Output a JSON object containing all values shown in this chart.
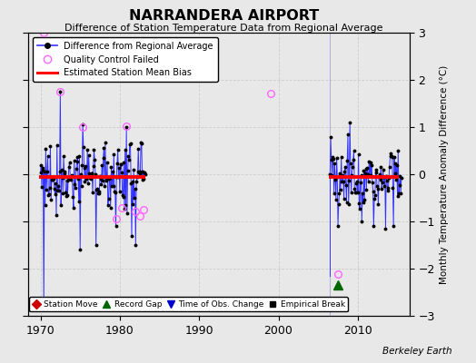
{
  "title": "NARRANDERA AIRPORT",
  "subtitle": "Difference of Station Temperature Data from Regional Average",
  "ylabel": "Monthly Temperature Anomaly Difference (°C)",
  "credit": "Berkeley Earth",
  "xlim": [
    1968.5,
    2016.5
  ],
  "ylim": [
    -3,
    3
  ],
  "yticks": [
    -3,
    -2,
    -1,
    0,
    1,
    2,
    3
  ],
  "xticks": [
    1970,
    1980,
    1990,
    2000,
    2010
  ],
  "background_color": "#e8e8e8",
  "segment1_bias": -0.05,
  "segment1_start": 1969.8,
  "segment1_end": 1983.2,
  "segment2_bias": -0.05,
  "segment2_start": 2006.3,
  "segment2_end": 2015.2,
  "record_gap_x": 2007.5,
  "record_gap_y": -2.35,
  "vertical_line_x": 2006.5,
  "qc_fail_points": [
    [
      1970.4,
      3.0
    ],
    [
      1972.5,
      1.75
    ],
    [
      1975.3,
      1.0
    ],
    [
      1979.5,
      -0.95
    ],
    [
      1980.3,
      -0.72
    ],
    [
      1980.8,
      1.02
    ],
    [
      1982.0,
      -0.78
    ],
    [
      1982.5,
      -0.88
    ],
    [
      1983.0,
      -0.75
    ],
    [
      1999.0,
      1.72
    ],
    [
      2007.5,
      -2.12
    ]
  ],
  "blue_line_color": "#3333ff",
  "dot_color": "#000000",
  "qc_color": "#ff66ff",
  "bias_color": "#ff0000",
  "gap_color": "#006600",
  "obs_change_color": "#0000cc",
  "station_move_color": "#cc0000",
  "empirical_break_color": "#000000",
  "grid_color": "#cccccc",
  "axvline_color": "#8888cc"
}
